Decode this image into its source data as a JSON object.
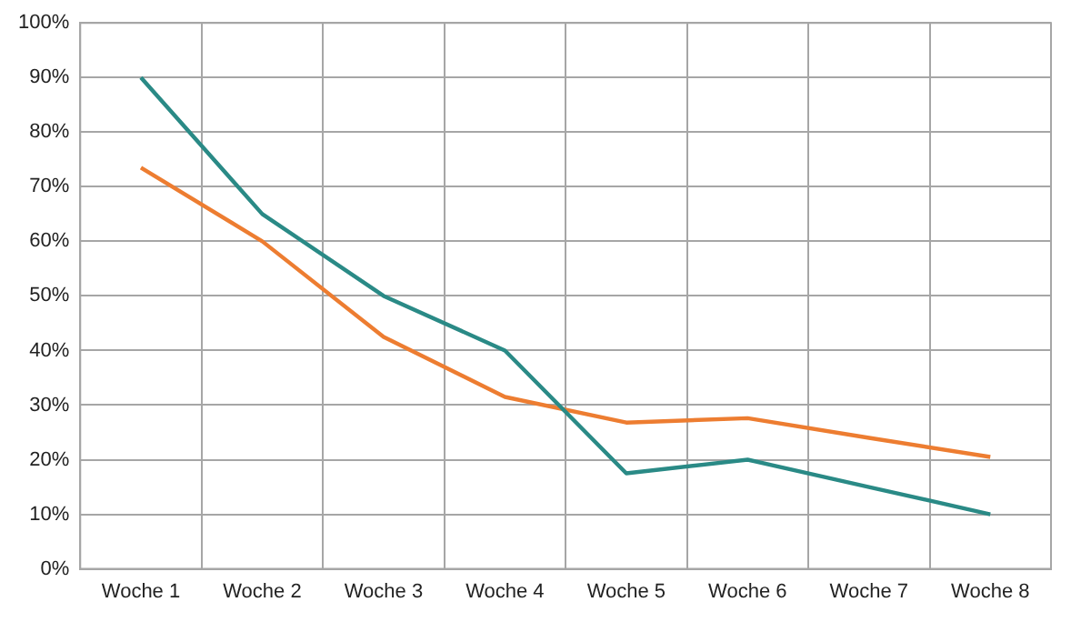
{
  "chart_data": {
    "type": "line",
    "categories": [
      "Woche 1",
      "Woche 2",
      "Woche 3",
      "Woche 4",
      "Woche 5",
      "Woche 6",
      "Woche 7",
      "Woche 8"
    ],
    "series": [
      {
        "color": "#2a8a86",
        "values": [
          90,
          65,
          50,
          40,
          17.5,
          20,
          15,
          10
        ]
      },
      {
        "color": "#ed7d31",
        "values": [
          73.5,
          60,
          42.5,
          31.5,
          26.8,
          27.6,
          24,
          20.5
        ]
      }
    ],
    "ylim": [
      0,
      100
    ],
    "yticks": [
      {
        "value": 0,
        "label": "0%"
      },
      {
        "value": 10,
        "label": "10%"
      },
      {
        "value": 20,
        "label": "20%"
      },
      {
        "value": 30,
        "label": "30%"
      },
      {
        "value": 40,
        "label": "40%"
      },
      {
        "value": 50,
        "label": "50%"
      },
      {
        "value": 60,
        "label": "60%"
      },
      {
        "value": 70,
        "label": "70%"
      },
      {
        "value": 80,
        "label": "80%"
      },
      {
        "value": 90,
        "label": "90%"
      },
      {
        "value": 100,
        "label": "100%"
      }
    ],
    "grid": true,
    "legend": false,
    "marker": "none",
    "line_style": "solid"
  }
}
